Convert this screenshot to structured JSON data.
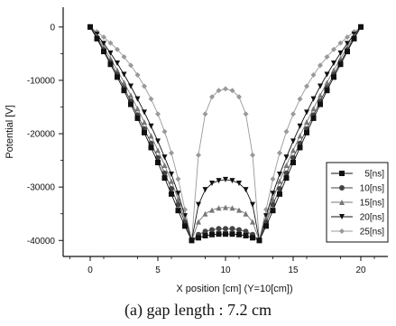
{
  "caption": "(a) gap length : 7.2 cm",
  "chart_data": {
    "type": "line",
    "title": "",
    "xlabel": "X position [cm] (Y=10[cm])",
    "ylabel": "Potential [V]",
    "xlim": [
      -2,
      22
    ],
    "ylim": [
      -43000,
      3700
    ],
    "xticks": [
      0,
      5,
      10,
      15,
      20
    ],
    "yticks": [
      0,
      -10000,
      -20000,
      -30000,
      -40000
    ],
    "xtick_labels": [
      "0",
      "5",
      "10",
      "15",
      "20"
    ],
    "ytick_labels": [
      "0",
      "-10000",
      "-20000",
      "-30000",
      "-40000"
    ],
    "grid": false,
    "legend_position": "right",
    "series": [
      {
        "name": "5[ns]",
        "marker": "square",
        "color": "#111111",
        "x": [
          0,
          0.5,
          1,
          1.5,
          2,
          2.5,
          3,
          3.5,
          4,
          4.5,
          5,
          5.5,
          6,
          6.5,
          7,
          7.5,
          8,
          8.5,
          9,
          9.5,
          10,
          10.5,
          11,
          11.5,
          12,
          12.5,
          13,
          13.5,
          14,
          14.5,
          15,
          15.5,
          16,
          16.5,
          17,
          17.5,
          18,
          18.5,
          19,
          19.5,
          20
        ],
        "y": [
          0,
          -2200,
          -4600,
          -7000,
          -9400,
          -11900,
          -14500,
          -17100,
          -19800,
          -22600,
          -25400,
          -28300,
          -31300,
          -34400,
          -37300,
          -40000,
          -39500,
          -39100,
          -38900,
          -38800,
          -38800,
          -38800,
          -38900,
          -39100,
          -39500,
          -40000,
          -37300,
          -34400,
          -31300,
          -28300,
          -25400,
          -22600,
          -19800,
          -17100,
          -14500,
          -11900,
          -9400,
          -7000,
          -4600,
          -2200,
          0
        ]
      },
      {
        "name": "10[ns]",
        "marker": "circle",
        "color": "#444444",
        "x": [
          0,
          0.5,
          1,
          1.5,
          2,
          2.5,
          3,
          3.5,
          4,
          4.5,
          5,
          5.5,
          6,
          6.5,
          7,
          7.5,
          8,
          8.5,
          9,
          9.5,
          10,
          10.5,
          11,
          11.5,
          12,
          12.5,
          13,
          13.5,
          14,
          14.5,
          15,
          15.5,
          16,
          16.5,
          17,
          17.5,
          18,
          18.5,
          19,
          19.5,
          20
        ],
        "y": [
          0,
          -2000,
          -4300,
          -6600,
          -8900,
          -11400,
          -13900,
          -16500,
          -19100,
          -21800,
          -24500,
          -27400,
          -30300,
          -33300,
          -36600,
          -40000,
          -38900,
          -38300,
          -38000,
          -37800,
          -37800,
          -37800,
          -38000,
          -38300,
          -38900,
          -40000,
          -36600,
          -33300,
          -30300,
          -27400,
          -24500,
          -21800,
          -19100,
          -16500,
          -13900,
          -11400,
          -8900,
          -6600,
          -4300,
          -2000,
          0
        ]
      },
      {
        "name": "15[ns]",
        "marker": "triangle-up",
        "color": "#777777",
        "x": [
          0,
          0.5,
          1,
          1.5,
          2,
          2.5,
          3,
          3.5,
          4,
          4.5,
          5,
          5.5,
          6,
          6.5,
          7,
          7.5,
          8,
          8.5,
          9,
          9.5,
          10,
          10.5,
          11,
          11.5,
          12,
          12.5,
          13,
          13.5,
          14,
          14.5,
          15,
          15.5,
          16,
          16.5,
          17,
          17.5,
          18,
          18.5,
          19,
          19.5,
          20
        ],
        "y": [
          0,
          -1700,
          -3800,
          -5900,
          -8100,
          -10400,
          -12800,
          -15300,
          -17800,
          -20400,
          -23100,
          -25900,
          -28900,
          -32300,
          -36000,
          -40000,
          -36500,
          -35000,
          -34300,
          -33900,
          -33800,
          -33900,
          -34300,
          -35000,
          -36500,
          -40000,
          -36000,
          -32300,
          -28900,
          -25900,
          -23100,
          -20400,
          -17800,
          -15300,
          -12800,
          -10400,
          -8100,
          -5900,
          -3800,
          -1700,
          0
        ]
      },
      {
        "name": "20[ns]",
        "marker": "triangle-down",
        "color": "#111111",
        "x": [
          0,
          0.5,
          1,
          1.5,
          2,
          2.5,
          3,
          3.5,
          4,
          4.5,
          5,
          5.5,
          6,
          6.5,
          7,
          7.5,
          8,
          8.5,
          9,
          9.5,
          10,
          10.5,
          11,
          11.5,
          12,
          12.5,
          13,
          13.5,
          14,
          14.5,
          15,
          15.5,
          16,
          16.5,
          17,
          17.5,
          18,
          18.5,
          19,
          19.5,
          20
        ],
        "y": [
          0,
          -1400,
          -3100,
          -4900,
          -6800,
          -8900,
          -11100,
          -13500,
          -16000,
          -18600,
          -21400,
          -24400,
          -27600,
          -31200,
          -35400,
          -40000,
          -33300,
          -30500,
          -29300,
          -28800,
          -28600,
          -28800,
          -29300,
          -30500,
          -33300,
          -40000,
          -35400,
          -31200,
          -27600,
          -24400,
          -21400,
          -18600,
          -16000,
          -13500,
          -11100,
          -8900,
          -6800,
          -4900,
          -3100,
          -1400,
          0
        ]
      },
      {
        "name": "25[ns]",
        "marker": "diamond",
        "color": "#999999",
        "x": [
          0,
          0.5,
          1,
          1.5,
          2,
          2.5,
          3,
          3.5,
          4,
          4.5,
          5,
          5.5,
          6,
          6.5,
          7,
          7.5,
          8,
          8.5,
          9,
          9.5,
          10,
          10.5,
          11,
          11.5,
          12,
          12.5,
          13,
          13.5,
          14,
          14.5,
          15,
          15.5,
          16,
          16.5,
          17,
          17.5,
          18,
          18.5,
          19,
          19.5,
          20
        ],
        "y": [
          0,
          -900,
          -1900,
          -3000,
          -4200,
          -5600,
          -7200,
          -9000,
          -11100,
          -13500,
          -16300,
          -19600,
          -23600,
          -28500,
          -34200,
          -40000,
          -24000,
          -16300,
          -13100,
          -11900,
          -11600,
          -11900,
          -13100,
          -16300,
          -24000,
          -40000,
          -34200,
          -28500,
          -23600,
          -19600,
          -16300,
          -13500,
          -11100,
          -9000,
          -7200,
          -5600,
          -4200,
          -3000,
          -1900,
          -900,
          0
        ]
      }
    ]
  }
}
